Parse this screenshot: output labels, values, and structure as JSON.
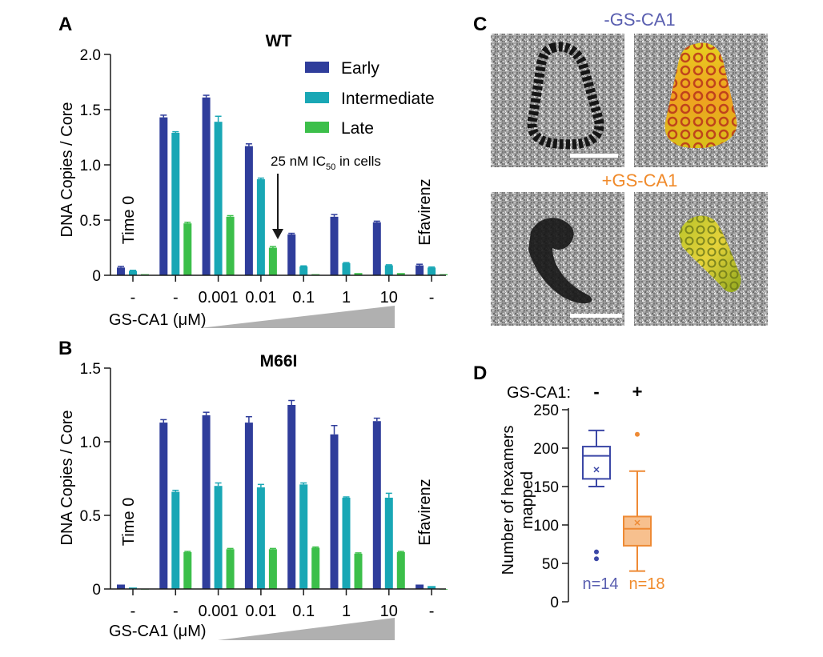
{
  "colors": {
    "early": "#2f3d9b",
    "intermediate": "#19a7b5",
    "late": "#3cbf4a",
    "axis": "#1a1a1a",
    "wedge": "#b0b0b0",
    "minus_label": "#5a5fb0",
    "plus_label": "#f08a2a",
    "box_minus": "#3b47a6",
    "box_plus": "#ee8a35",
    "box_plus_fill": "#f7c08e"
  },
  "chart_data": [
    {
      "panel": "A",
      "type": "bar",
      "title": "WT",
      "ylabel": "DNA Copies / Core",
      "xlabel": "GS-CA1 (μM)",
      "ylim": [
        0,
        2.0
      ],
      "yticks": [
        "0",
        "0.5",
        "1.0",
        "1.5",
        "2.0"
      ],
      "ytick_values": [
        0,
        0.5,
        1.0,
        1.5,
        2.0
      ],
      "categories": [
        "-",
        "-",
        "0.001",
        "0.01",
        "0.1",
        "1",
        "10",
        "-"
      ],
      "category_notes": [
        "Time 0",
        "",
        "",
        "",
        "",
        "",
        "",
        "Efavirenz"
      ],
      "series": [
        {
          "name": "Early",
          "values": [
            0.07,
            1.43,
            1.61,
            1.17,
            0.37,
            0.53,
            0.48,
            0.09
          ],
          "errors": [
            0.01,
            0.02,
            0.02,
            0.02,
            0.01,
            0.02,
            0.01,
            0.01
          ]
        },
        {
          "name": "Intermediate",
          "values": [
            0.04,
            1.29,
            1.39,
            0.87,
            0.08,
            0.11,
            0.09,
            0.07
          ],
          "errors": [
            0.005,
            0.01,
            0.05,
            0.01,
            0.005,
            0.005,
            0.005,
            0.005
          ]
        },
        {
          "name": "Late",
          "values": [
            0.01,
            0.47,
            0.53,
            0.25,
            0.01,
            0.02,
            0.02,
            0.01
          ],
          "errors": [
            0.0,
            0.01,
            0.01,
            0.01,
            0.0,
            0.0,
            0.0,
            0.0
          ]
        }
      ],
      "legend": [
        "Early",
        "Intermediate",
        "Late"
      ],
      "annotation": {
        "text_main": "25 nM IC",
        "text_sub": "50",
        "text_tail": " in cells"
      }
    },
    {
      "panel": "B",
      "type": "bar",
      "title": "M66I",
      "ylabel": "DNA Copies / Core",
      "xlabel": "GS-CA1 (μM)",
      "ylim": [
        0,
        1.5
      ],
      "yticks": [
        "0",
        "0.5",
        "1.0",
        "1.5"
      ],
      "ytick_values": [
        0,
        0.5,
        1.0,
        1.5
      ],
      "categories": [
        "-",
        "-",
        "0.001",
        "0.01",
        "0.1",
        "1",
        "10",
        "-"
      ],
      "category_notes": [
        "Time 0",
        "",
        "",
        "",
        "",
        "",
        "",
        "Efavirenz"
      ],
      "series": [
        {
          "name": "Early",
          "values": [
            0.03,
            1.13,
            1.18,
            1.13,
            1.25,
            1.05,
            1.14,
            0.03
          ],
          "errors": [
            0.0,
            0.02,
            0.02,
            0.04,
            0.03,
            0.06,
            0.02,
            0.0
          ]
        },
        {
          "name": "Intermediate",
          "values": [
            0.01,
            0.66,
            0.7,
            0.69,
            0.71,
            0.62,
            0.62,
            0.02
          ],
          "errors": [
            0.0,
            0.01,
            0.02,
            0.02,
            0.01,
            0.005,
            0.03,
            0.0
          ]
        },
        {
          "name": "Late",
          "values": [
            0.0,
            0.25,
            0.27,
            0.27,
            0.28,
            0.24,
            0.25,
            0.0
          ],
          "errors": [
            0.0,
            0.005,
            0.005,
            0.005,
            0.005,
            0.005,
            0.005,
            0.0
          ]
        }
      ]
    },
    {
      "panel": "D",
      "type": "box",
      "ylabel": "Number of hexamers mapped",
      "ylim": [
        0,
        250
      ],
      "yticks": [
        "0",
        "50",
        "100",
        "150",
        "200",
        "250"
      ],
      "ytick_values": [
        0,
        50,
        100,
        150,
        200,
        250
      ],
      "group_label": "GS-CA1:",
      "groups": [
        {
          "label": "-",
          "n": "n=14",
          "min": 150,
          "q1": 160,
          "median": 190,
          "q3": 202,
          "max": 223,
          "mean": 172,
          "outliers": [
            65,
            56
          ]
        },
        {
          "label": "+",
          "n": "n=18",
          "min": 40,
          "q1": 73,
          "median": 95,
          "q3": 111,
          "max": 170,
          "mean": 103,
          "outliers": [
            218
          ]
        }
      ]
    }
  ],
  "panel_letters": {
    "a": "A",
    "b": "B",
    "c": "C",
    "d": "D"
  },
  "panel_c": {
    "minus_label": "-GS-CA1",
    "plus_label": "+GS-CA1"
  }
}
